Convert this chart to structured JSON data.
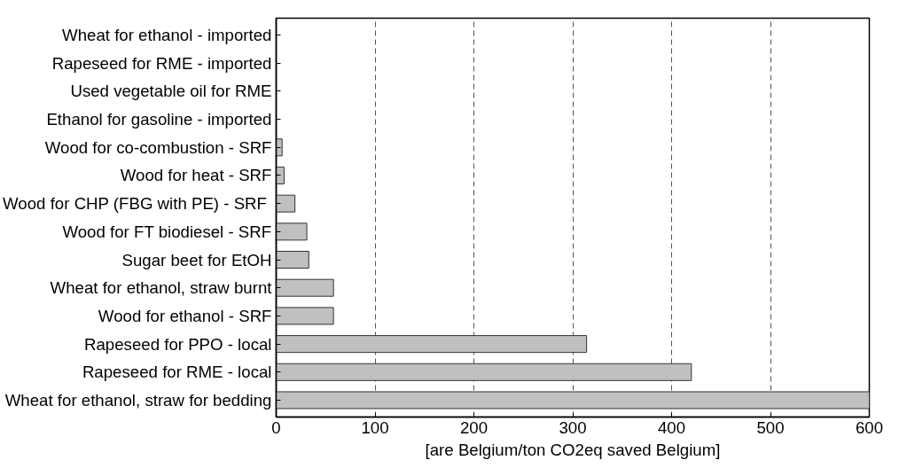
{
  "chart_data": {
    "type": "bar",
    "orientation": "horizontal",
    "xlabel": "[are Belgium/ton CO2eq saved Belgium]",
    "categories": [
      "Wheat for ethanol - imported",
      "Rapeseed for RME - imported",
      "Used vegetable oil for RME",
      "Ethanol for gasoline - imported",
      "Wood for co-combustion - SRF",
      "Wood for heat - SRF",
      "Wood  for CHP (FBG with PE) - SRF",
      "Wood for FT biodiesel - SRF",
      "Sugar beet for EtOH",
      "Wheat for ethanol, straw burnt",
      "Wood for ethanol - SRF",
      "Rapeseed for PPO - local",
      "Rapeseed for RME - local",
      "Wheat for ethanol, straw for bedding"
    ],
    "values": [
      0,
      0,
      0,
      0,
      6,
      8,
      19,
      31,
      33,
      58,
      58,
      314,
      420,
      600
    ],
    "color": "#c0c0c0",
    "xlim": [
      0,
      600
    ],
    "xticks": [
      0,
      100,
      200,
      300,
      400,
      500,
      600
    ],
    "grid": "x",
    "line_style": "dashed"
  }
}
